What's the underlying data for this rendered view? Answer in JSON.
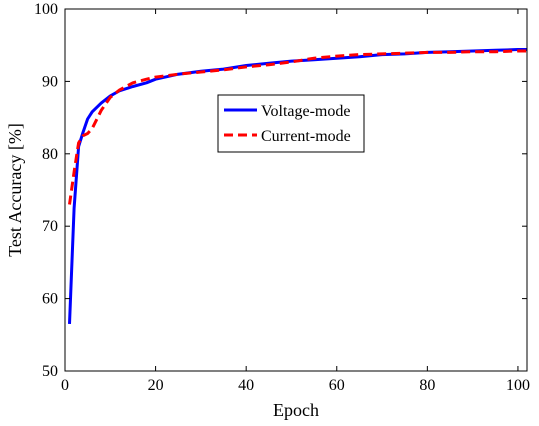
{
  "chart_data": {
    "type": "line",
    "title": "",
    "xlabel": "Epoch",
    "ylabel": "Test Accuracy [%]",
    "xlim": [
      0,
      102
    ],
    "ylim": [
      50,
      100
    ],
    "xticks": [
      0,
      20,
      40,
      60,
      80,
      100
    ],
    "yticks": [
      50,
      60,
      70,
      80,
      90,
      100
    ],
    "grid": false,
    "legend_position": "center",
    "series": [
      {
        "name": "Voltage-mode",
        "color": "#0000ff",
        "style": "solid",
        "x": [
          1,
          2,
          3,
          4,
          5,
          6,
          8,
          10,
          12,
          15,
          18,
          20,
          25,
          30,
          35,
          40,
          45,
          50,
          55,
          60,
          65,
          70,
          75,
          80,
          85,
          90,
          95,
          100,
          102
        ],
        "y": [
          56.5,
          72.5,
          81.0,
          83.0,
          84.8,
          85.8,
          87.0,
          88.0,
          88.7,
          89.3,
          89.8,
          90.3,
          91.0,
          91.4,
          91.7,
          92.2,
          92.5,
          92.8,
          93.0,
          93.2,
          93.4,
          93.7,
          93.8,
          94.0,
          94.1,
          94.2,
          94.3,
          94.4,
          94.4
        ]
      },
      {
        "name": "Current-mode",
        "color": "#ff0000",
        "style": "dashed",
        "x": [
          1,
          2,
          3,
          4,
          5,
          6,
          8,
          10,
          12,
          15,
          18,
          20,
          25,
          30,
          35,
          40,
          45,
          50,
          55,
          60,
          65,
          70,
          75,
          80,
          85,
          90,
          95,
          100,
          102
        ],
        "y": [
          73.0,
          77.5,
          81.5,
          82.5,
          82.8,
          83.5,
          86.0,
          87.8,
          88.8,
          89.8,
          90.3,
          90.6,
          91.0,
          91.3,
          91.6,
          92.0,
          92.3,
          92.7,
          93.2,
          93.5,
          93.7,
          93.8,
          93.9,
          94.0,
          94.0,
          94.1,
          94.1,
          94.2,
          94.2
        ]
      }
    ]
  }
}
